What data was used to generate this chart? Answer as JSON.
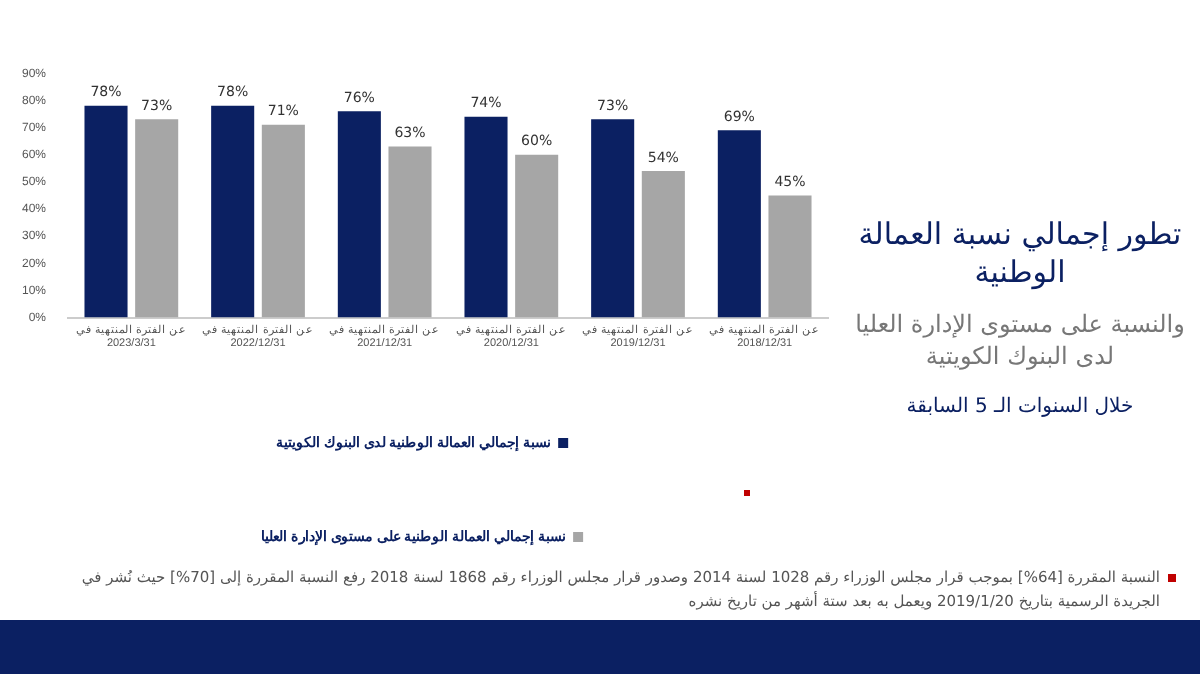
{
  "chart_data": {
    "type": "bar",
    "title": "تطور إجمالي نسبة العمالة الوطنية",
    "subtitle": "والنسبة على مستوى الإدارة العليا لدى البنوك الكويتية",
    "annotations": [
      "خلال السنوات الـ 5 السابقة",
      "النسبة المقررة [64%] بموجب قرار مجلس الوزراء رقم 1028 لسنة 2014 وصدور قرار مجلس الوزراء رقم 1868 لسنة 2018 رفع النسبة المقررة إلى [70%] حيث نُشر في الجريدة الرسمية بتاريخ 2019/1/20 ويعمل به بعد ستة أشهر من تاريخ نشره"
    ],
    "categories": [
      "عن الفترة المنتهية في\n2023/3/31",
      "عن الفترة المنتهية في\n2022/12/31",
      "عن الفترة المنتهية في\n2021/12/31",
      "عن الفترة المنتهية في\n2020/12/31",
      "عن الفترة المنتهية في\n2019/12/31",
      "عن الفترة المنتهية في\n2018/12/31"
    ],
    "series": [
      {
        "name": "نسبة إجمالي العمالة الوطنية لدى البنوك الكويتية",
        "color": "#0b2062",
        "values": [
          78,
          78,
          76,
          74,
          73,
          69
        ],
        "value_labels": [
          "78%",
          "78%",
          "76%",
          "74%",
          "73%",
          "69%"
        ]
      },
      {
        "name": "نسبة إجمالي العمالة الوطنية على مستوى الإدارة العليا",
        "color": "#a6a6a6",
        "values": [
          73,
          71,
          63,
          60,
          54,
          45
        ],
        "value_labels": [
          "73%",
          "71%",
          "63%",
          "60%",
          "54%",
          "45%"
        ]
      }
    ],
    "ylim": [
      0,
      90
    ],
    "yticks": [
      {
        "value": 0,
        "label": "0%"
      },
      {
        "value": 10,
        "label": "10%"
      },
      {
        "value": 20,
        "label": "20%"
      },
      {
        "value": 30,
        "label": "30%"
      },
      {
        "value": 40,
        "label": "40%"
      },
      {
        "value": 50,
        "label": "50%"
      },
      {
        "value": 60,
        "label": "60%"
      },
      {
        "value": 70,
        "label": "70%"
      },
      {
        "value": 80,
        "label": "80%"
      },
      {
        "value": 90,
        "label": "90%"
      }
    ],
    "grid": false,
    "legend": "bottom"
  }
}
